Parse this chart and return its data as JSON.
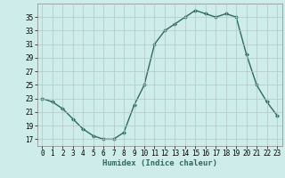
{
  "x": [
    0,
    1,
    2,
    3,
    4,
    5,
    6,
    7,
    8,
    9,
    10,
    11,
    12,
    13,
    14,
    15,
    16,
    17,
    18,
    19,
    20,
    21,
    22,
    23
  ],
  "y": [
    23,
    22.5,
    21.5,
    20,
    18.5,
    17.5,
    17,
    17,
    18,
    22,
    25,
    31,
    33,
    34,
    35,
    36,
    35.5,
    35,
    35.5,
    35,
    29.5,
    25,
    22.5,
    20.5
  ],
  "line_color": "#2d6b5e",
  "marker": "D",
  "marker_size": 2,
  "bg_color": "#ceecea",
  "grid_color": "#b0c8c5",
  "xlabel": "Humidex (Indice chaleur)",
  "xlim": [
    -0.5,
    23.5
  ],
  "ylim": [
    16,
    37
  ],
  "yticks": [
    17,
    19,
    21,
    23,
    25,
    27,
    29,
    31,
    33,
    35
  ],
  "xticks": [
    0,
    1,
    2,
    3,
    4,
    5,
    6,
    7,
    8,
    9,
    10,
    11,
    12,
    13,
    14,
    15,
    16,
    17,
    18,
    19,
    20,
    21,
    22,
    23
  ],
  "xlabel_fontsize": 6.5,
  "tick_fontsize": 5.5,
  "line_width": 1.0
}
